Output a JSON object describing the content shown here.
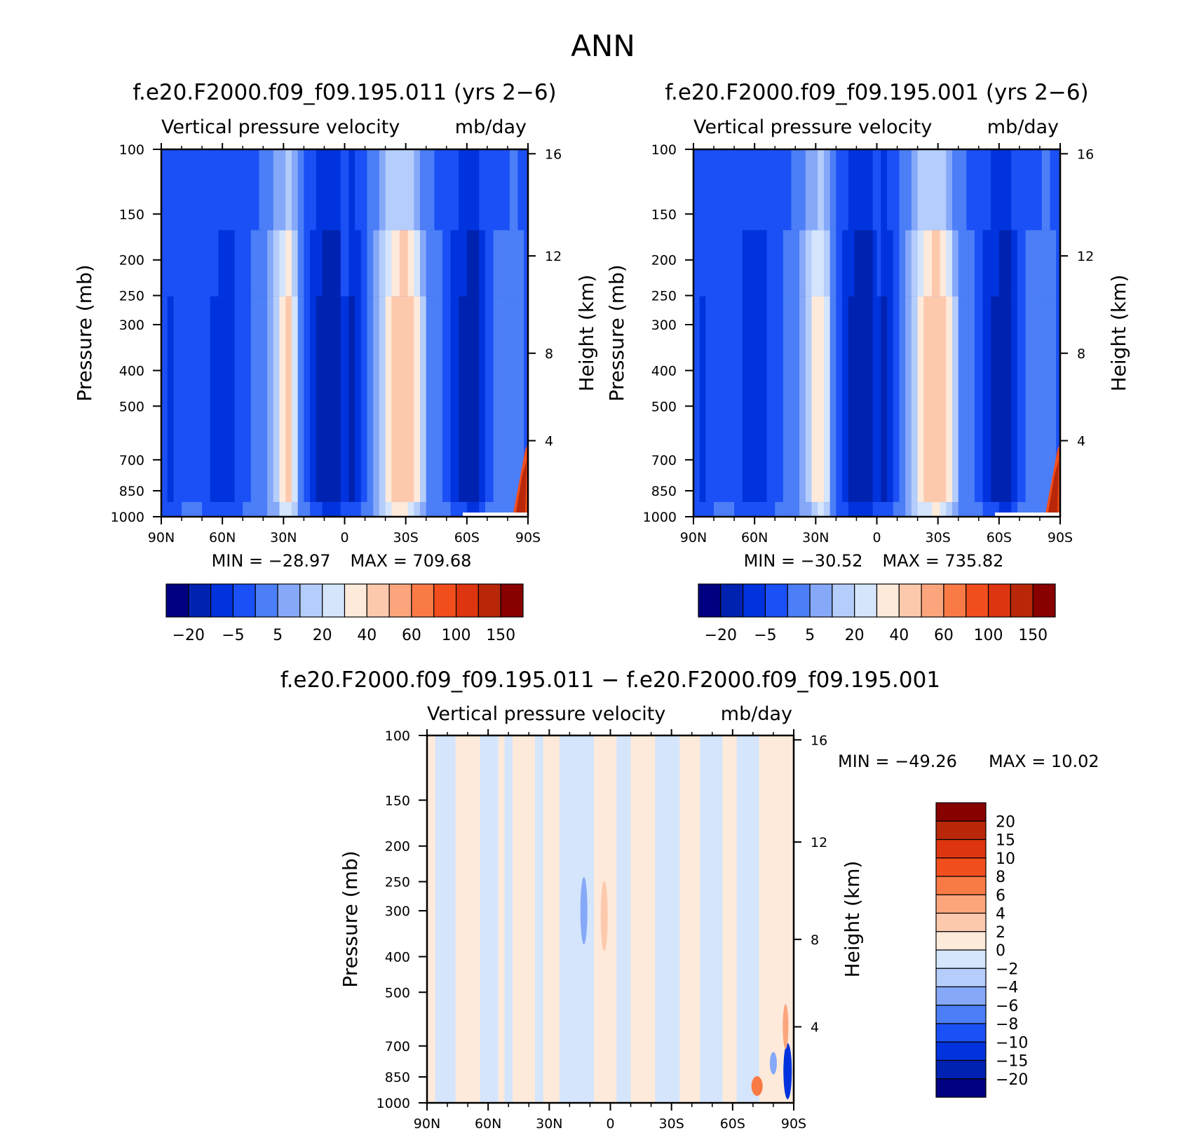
{
  "page_title": "ANN",
  "colors": {
    "main_palette": [
      "#000080",
      "#0022b0",
      "#0033dd",
      "#1a50f5",
      "#4b7ef7",
      "#86a8f8",
      "#b5cdfb",
      "#d4e5fc",
      "#feeada",
      "#fdc9ad",
      "#fca57c",
      "#fa7a45",
      "#f24e1d",
      "#dc3510",
      "#b82808",
      "#880000"
    ],
    "diff_palette": [
      "#000080",
      "#0022b0",
      "#0033dd",
      "#1a50f5",
      "#4b7ef7",
      "#86a8f8",
      "#b5cdfb",
      "#d4e5fc",
      "#feeada",
      "#fdc9ad",
      "#fca57c",
      "#fa7a45",
      "#f24e1d",
      "#dc3510",
      "#b82808",
      "#880000"
    ]
  },
  "chart_data": [
    {
      "type": "heatmap",
      "title": "f.e20.F2000.f09_f09.195.011 (yrs 2−6)",
      "subtitle": "Vertical pressure velocity",
      "units": "mb/day",
      "ylabel": "Pressure (mb)",
      "y2label": "Height (km)",
      "x_ticks": [
        "90N",
        "60N",
        "30N",
        "0",
        "30S",
        "60S",
        "90S"
      ],
      "y_ticks": [
        100,
        150,
        200,
        250,
        300,
        400,
        500,
        700,
        850,
        1000
      ],
      "y2_ticks": [
        16,
        12,
        8,
        4
      ],
      "ylim": [
        1000,
        100
      ],
      "min_label": "MIN = −28.97",
      "max_label": "MAX = 709.68",
      "colorbar_labels": [
        "−20",
        "−5",
        "5",
        "20",
        "40",
        "60",
        "100",
        "150"
      ],
      "profile": [
        [
          90,
          -8
        ],
        [
          87,
          -9
        ],
        [
          84,
          -12
        ],
        [
          80,
          -8
        ],
        [
          77,
          -5
        ],
        [
          74,
          -6
        ],
        [
          70,
          -9
        ],
        [
          66,
          -10
        ],
        [
          62,
          -12
        ],
        [
          58,
          -14
        ],
        [
          54,
          -12
        ],
        [
          50,
          -8
        ],
        [
          46,
          -6
        ],
        [
          42,
          -4
        ],
        [
          38,
          -1
        ],
        [
          35,
          4
        ],
        [
          32,
          12
        ],
        [
          29,
          22
        ],
        [
          26,
          19
        ],
        [
          23,
          4
        ],
        [
          20,
          -6
        ],
        [
          17,
          -10
        ],
        [
          14,
          -14
        ],
        [
          11,
          -18
        ],
        [
          8,
          -26
        ],
        [
          5,
          -22
        ],
        [
          2,
          -14
        ],
        [
          0,
          -8
        ],
        [
          -2,
          -14
        ],
        [
          -5,
          -18
        ],
        [
          -8,
          -10
        ],
        [
          -11,
          -4
        ],
        [
          -14,
          0
        ],
        [
          -17,
          4
        ],
        [
          -20,
          14
        ],
        [
          -23,
          22
        ],
        [
          -27,
          28
        ],
        [
          -31,
          26
        ],
        [
          -34,
          20
        ],
        [
          -37,
          10
        ],
        [
          -40,
          2
        ],
        [
          -44,
          -3
        ],
        [
          -48,
          -6
        ],
        [
          -52,
          -10
        ],
        [
          -56,
          -14
        ],
        [
          -60,
          -18
        ],
        [
          -63,
          -21
        ],
        [
          -66,
          -18
        ],
        [
          -69,
          -10
        ],
        [
          -73,
          -6
        ],
        [
          -77,
          -4
        ],
        [
          -81,
          -5
        ],
        [
          -85,
          -3
        ],
        [
          -88,
          -6
        ],
        [
          -90,
          -7
        ]
      ]
    },
    {
      "type": "heatmap",
      "title": "f.e20.F2000.f09_f09.195.001 (yrs 2−6)",
      "subtitle": "Vertical pressure velocity",
      "units": "mb/day",
      "ylabel": "Pressure (mb)",
      "y2label": "Height (km)",
      "x_ticks": [
        "90N",
        "60N",
        "30N",
        "0",
        "30S",
        "60S",
        "90S"
      ],
      "y_ticks": [
        100,
        150,
        200,
        250,
        300,
        400,
        500,
        700,
        850,
        1000
      ],
      "y2_ticks": [
        16,
        12,
        8,
        4
      ],
      "ylim": [
        1000,
        100
      ],
      "min_label": "MIN = −30.52",
      "max_label": "MAX = 735.82",
      "colorbar_labels": [
        "−20",
        "−5",
        "5",
        "20",
        "40",
        "60",
        "100",
        "150"
      ],
      "profile": [
        [
          90,
          -8
        ],
        [
          87,
          -9
        ],
        [
          84,
          -12
        ],
        [
          80,
          -8
        ],
        [
          77,
          -5
        ],
        [
          74,
          -6
        ],
        [
          70,
          -9
        ],
        [
          66,
          -10
        ],
        [
          62,
          -13
        ],
        [
          58,
          -14
        ],
        [
          54,
          -12
        ],
        [
          50,
          -8
        ],
        [
          46,
          -6
        ],
        [
          42,
          -4
        ],
        [
          38,
          -1
        ],
        [
          35,
          4
        ],
        [
          32,
          11
        ],
        [
          29,
          21
        ],
        [
          26,
          18
        ],
        [
          23,
          4
        ],
        [
          20,
          -6
        ],
        [
          17,
          -11
        ],
        [
          14,
          -15
        ],
        [
          11,
          -19
        ],
        [
          8,
          -27
        ],
        [
          5,
          -23
        ],
        [
          2,
          -15
        ],
        [
          0,
          -8
        ],
        [
          -2,
          -14
        ],
        [
          -5,
          -18
        ],
        [
          -8,
          -11
        ],
        [
          -11,
          -4
        ],
        [
          -14,
          0
        ],
        [
          -17,
          4
        ],
        [
          -20,
          14
        ],
        [
          -23,
          22
        ],
        [
          -27,
          27
        ],
        [
          -31,
          26
        ],
        [
          -34,
          20
        ],
        [
          -37,
          10
        ],
        [
          -40,
          2
        ],
        [
          -44,
          -3
        ],
        [
          -48,
          -6
        ],
        [
          -52,
          -10
        ],
        [
          -56,
          -14
        ],
        [
          -60,
          -18
        ],
        [
          -63,
          -22
        ],
        [
          -66,
          -18
        ],
        [
          -69,
          -10
        ],
        [
          -73,
          -6
        ],
        [
          -77,
          -4
        ],
        [
          -81,
          -5
        ],
        [
          -85,
          -3
        ],
        [
          -88,
          -6
        ],
        [
          -90,
          -7
        ]
      ]
    },
    {
      "type": "heatmap",
      "title": "f.e20.F2000.f09_f09.195.011 − f.e20.F2000.f09_f09.195.001",
      "subtitle": "Vertical pressure velocity",
      "units": "mb/day",
      "ylabel": "Pressure (mb)",
      "y2label": "Height (km)",
      "x_ticks": [
        "90N",
        "60N",
        "30N",
        "0",
        "30S",
        "60S",
        "90S"
      ],
      "y_ticks": [
        100,
        150,
        200,
        250,
        300,
        400,
        500,
        700,
        850,
        1000
      ],
      "y2_ticks": [
        16,
        12,
        8,
        4
      ],
      "ylim": [
        1000,
        100
      ],
      "min_label": "MIN = −49.26",
      "max_label": "MAX =   10.02",
      "colorbar_labels": [
        "20",
        "15",
        "10",
        "8",
        "6",
        "4",
        "2",
        "0",
        "−2",
        "−4",
        "−6",
        "−8",
        "−10",
        "−15",
        "−20"
      ],
      "bands": [
        [
          90,
          86,
          0
        ],
        [
          86,
          76,
          -1
        ],
        [
          76,
          64,
          0
        ],
        [
          64,
          55,
          -1
        ],
        [
          55,
          52,
          0
        ],
        [
          52,
          48,
          -1
        ],
        [
          48,
          37,
          0
        ],
        [
          37,
          33,
          -1
        ],
        [
          33,
          25,
          0
        ],
        [
          25,
          18,
          -1
        ],
        [
          18,
          14,
          -1
        ],
        [
          14,
          8,
          -1
        ],
        [
          8,
          3,
          0
        ],
        [
          3,
          -3,
          0
        ],
        [
          -3,
          -10,
          -1
        ],
        [
          -10,
          -22,
          0
        ],
        [
          -22,
          -34,
          -1
        ],
        [
          -34,
          -44,
          0
        ],
        [
          -44,
          -55,
          -1
        ],
        [
          -55,
          -62,
          0
        ],
        [
          -62,
          -73,
          -1
        ],
        [
          -73,
          -90,
          0
        ]
      ]
    }
  ]
}
